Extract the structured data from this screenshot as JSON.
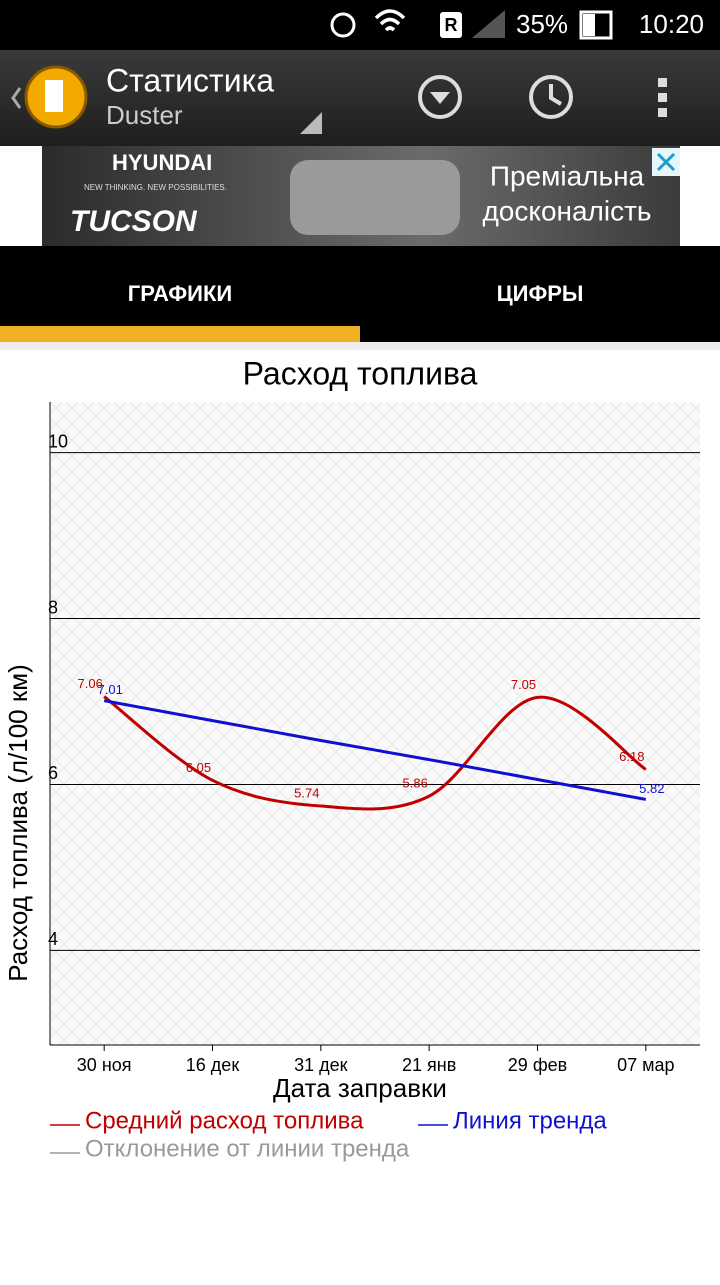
{
  "status_bar": {
    "roaming": "R",
    "battery": "35%",
    "time": "10:20"
  },
  "header": {
    "title": "Статистика",
    "subtitle": "Duster"
  },
  "ad": {
    "brand": "HYUNDAI",
    "slogan": "NEW THINKING. NEW POSSIBILITIES.",
    "model": "TUCSON",
    "text_line1": "Преміальна",
    "text_line2": "досконалість"
  },
  "tabs": [
    "ГРАФИКИ",
    "ЦИФРЫ"
  ],
  "chart_data": {
    "type": "line",
    "title": "Расход топлива",
    "y_label": "Расход топлива (л/100 км)",
    "x_label": "Дата заправки",
    "categories": [
      "30 ноя",
      "16 дек",
      "31 дек",
      "21 янв",
      "29 фев",
      "07 мар"
    ],
    "series": [
      {
        "name": "Средний расход топлива",
        "color": "#c00000",
        "smooth": true,
        "values": [
          7.06,
          6.05,
          5.74,
          5.86,
          7.05,
          6.18
        ]
      },
      {
        "name": "Линия тренда",
        "color": "#1010d0",
        "smooth": false,
        "values": [
          7.01,
          6.77,
          6.53,
          6.3,
          6.06,
          5.82
        ],
        "value_labels": [
          "7.01",
          null,
          null,
          null,
          null,
          "5.82"
        ]
      },
      {
        "name": "Отклонение от линии тренда",
        "color": "#999999",
        "smooth": false,
        "values": [
          null,
          null,
          null,
          null,
          null,
          null
        ]
      }
    ],
    "ylim": [
      2.86,
      10.61
    ],
    "yticks": [
      4,
      6,
      8,
      10
    ],
    "grid": true
  }
}
